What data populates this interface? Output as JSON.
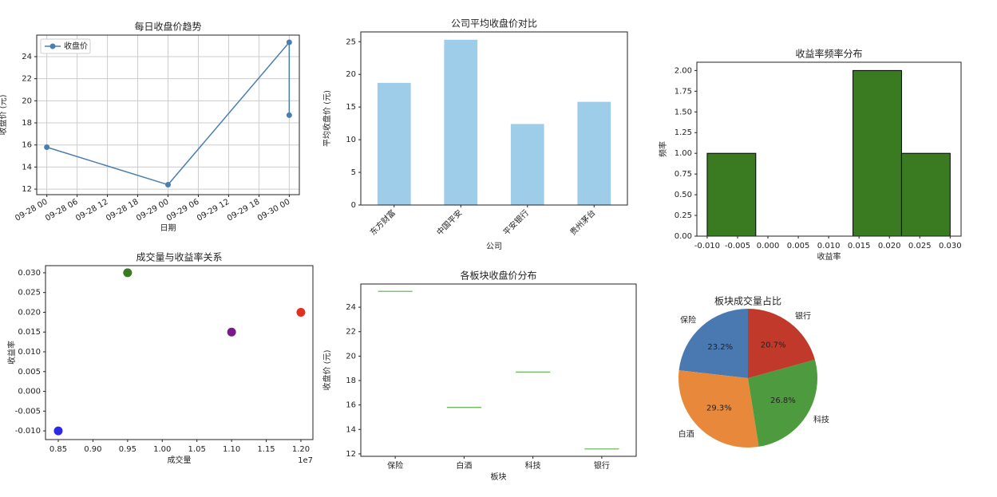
{
  "chart_data": [
    {
      "type": "line",
      "title": "每日收盘价趋势",
      "xlabel": "日期",
      "ylabel": "收盘价 (元)",
      "x": [
        "09-28 00",
        "09-29 00",
        "09-30 00",
        "09-30 00"
      ],
      "series": [
        {
          "name": "收盘价",
          "color": "#4a7eb0",
          "values": [
            15.8,
            12.4,
            25.3,
            18.7
          ]
        }
      ],
      "xlim": [
        "09-27 22",
        "09-30 02"
      ],
      "xticks": [
        "09-28 00",
        "09-28 06",
        "09-28 12",
        "09-28 18",
        "09-29 00",
        "09-29 06",
        "09-29 12",
        "09-29 18",
        "09-30 00"
      ],
      "ylim": [
        11.5,
        25.95
      ],
      "yticks": [
        12,
        14,
        16,
        18,
        20,
        22,
        24
      ],
      "grid": true,
      "legend": "upper-left"
    },
    {
      "type": "bar",
      "title": "公司平均收盘价对比",
      "xlabel": "公司",
      "ylabel": "平均收盘价 (元)",
      "categories": [
        "东方财富",
        "中国平安",
        "平安银行",
        "贵州茅台"
      ],
      "values": [
        18.7,
        25.3,
        12.4,
        15.8
      ],
      "color": "#9ecde9",
      "ylim": [
        0,
        26.5
      ],
      "yticks": [
        0,
        5,
        10,
        15,
        20,
        25
      ]
    },
    {
      "type": "histogram",
      "title": "收益率频率分布",
      "xlabel": "收益率",
      "ylabel": "频率",
      "bins": [
        -0.01,
        -0.002,
        0.006,
        0.014,
        0.022,
        0.03
      ],
      "values": [
        1,
        0,
        0,
        2,
        1
      ],
      "color": "#3a7a20",
      "edgecolor": "#000000",
      "xlim": [
        -0.0117,
        0.0318
      ],
      "xticks": [
        {
          "value": -0.01,
          "label": "-0.010"
        },
        {
          "value": -0.005,
          "label": "-0.005"
        },
        {
          "value": 0,
          "label": "0.000"
        },
        {
          "value": 0.005,
          "label": "0.005"
        },
        {
          "value": 0.01,
          "label": "0.010"
        },
        {
          "value": 0.015,
          "label": "0.015"
        },
        {
          "value": 0.02,
          "label": "0.020"
        },
        {
          "value": 0.025,
          "label": "0.025"
        },
        {
          "value": 0.03,
          "label": "0.030"
        }
      ],
      "ylim": [
        0,
        2.1
      ],
      "yticks": [
        {
          "value": 0,
          "label": "0.00"
        },
        {
          "value": 0.25,
          "label": "0.25"
        },
        {
          "value": 0.5,
          "label": "0.50"
        },
        {
          "value": 0.75,
          "label": "0.75"
        },
        {
          "value": 1,
          "label": "1.00"
        },
        {
          "value": 1.25,
          "label": "1.25"
        },
        {
          "value": 1.5,
          "label": "1.50"
        },
        {
          "value": 1.75,
          "label": "1.75"
        },
        {
          "value": 2,
          "label": "2.00"
        }
      ]
    },
    {
      "type": "scatter",
      "title": "成交量与收益率关系",
      "xlabel": "成交量",
      "ylabel": "收益率",
      "x_offset": "1e7",
      "x": [
        8500000,
        9500000,
        11000000,
        12000000
      ],
      "values": [
        -0.01,
        0.03,
        0.015,
        0.02
      ],
      "colors": [
        "#2a2ae8",
        "#3a7a20",
        "#7a1a8a",
        "#e03020"
      ],
      "xlim": [
        8316000,
        12173000
      ],
      "xticks": [
        {
          "value": 8500000,
          "label": "0.85"
        },
        {
          "value": 9000000,
          "label": "0.90"
        },
        {
          "value": 9500000,
          "label": "0.95"
        },
        {
          "value": 10000000,
          "label": "1.00"
        },
        {
          "value": 10500000,
          "label": "1.05"
        },
        {
          "value": 11000000,
          "label": "1.10"
        },
        {
          "value": 11500000,
          "label": "1.15"
        },
        {
          "value": 12000000,
          "label": "1.20"
        }
      ],
      "ylim": [
        -0.0122,
        0.0318
      ],
      "yticks": [
        {
          "value": -0.01,
          "label": "-0.010"
        },
        {
          "value": -0.005,
          "label": "-0.005"
        },
        {
          "value": 0,
          "label": "0.000"
        },
        {
          "value": 0.005,
          "label": "0.005"
        },
        {
          "value": 0.01,
          "label": "0.010"
        },
        {
          "value": 0.015,
          "label": "0.015"
        },
        {
          "value": 0.02,
          "label": "0.020"
        },
        {
          "value": 0.025,
          "label": "0.025"
        },
        {
          "value": 0.03,
          "label": "0.030"
        }
      ]
    },
    {
      "type": "box",
      "title": "各板块收盘价分布",
      "xlabel": "板块",
      "ylabel": "收盘价 (元)",
      "categories": [
        "保险",
        "白酒",
        "科技",
        "银行"
      ],
      "values": [
        25.3,
        15.8,
        18.7,
        12.4
      ],
      "color": "#5ab04a",
      "ylim": [
        11.8,
        25.9
      ],
      "yticks": [
        12,
        14,
        16,
        18,
        20,
        22,
        24
      ]
    },
    {
      "type": "pie",
      "title": "板块成交量占比",
      "categories": [
        "保险",
        "白酒",
        "科技",
        "银行"
      ],
      "values": [
        23.2,
        29.3,
        26.8,
        20.7
      ],
      "value_labels": [
        "23.2%",
        "29.3%",
        "26.8%",
        "20.7%"
      ],
      "colors": [
        "#4a78b0",
        "#e8883a",
        "#4e9a3e",
        "#c0392b"
      ]
    }
  ]
}
